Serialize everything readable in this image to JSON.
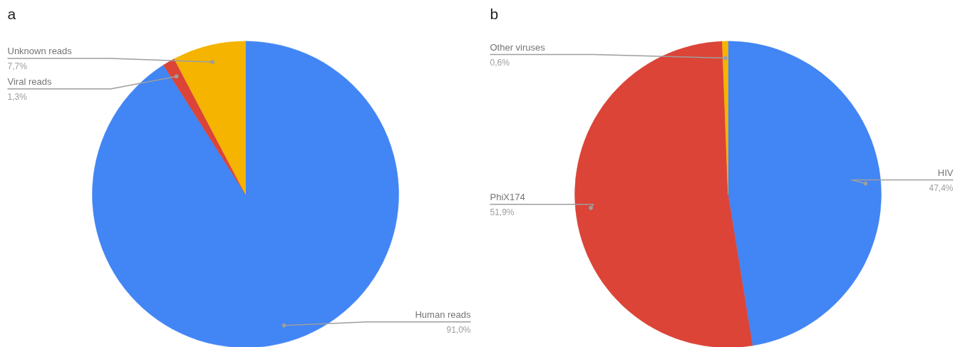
{
  "chart_data": [
    {
      "type": "pie",
      "title": "a",
      "categories": [
        "Human reads",
        "Viral reads",
        "Unknown reads"
      ],
      "values": [
        91.0,
        1.3,
        7.7
      ],
      "colors": [
        "#4285f4",
        "#db4437",
        "#f4b400"
      ],
      "value_labels": [
        "91,0%",
        "1,3%",
        "7,7%"
      ]
    },
    {
      "type": "pie",
      "title": "b",
      "categories": [
        "HIV",
        "PhiX174",
        "Other viruses"
      ],
      "values": [
        47.4,
        51.9,
        0.6
      ],
      "colors": [
        "#4285f4",
        "#db4437",
        "#f4b400"
      ],
      "value_labels": [
        "47,4%",
        "51,9%",
        "0,6%"
      ]
    }
  ]
}
